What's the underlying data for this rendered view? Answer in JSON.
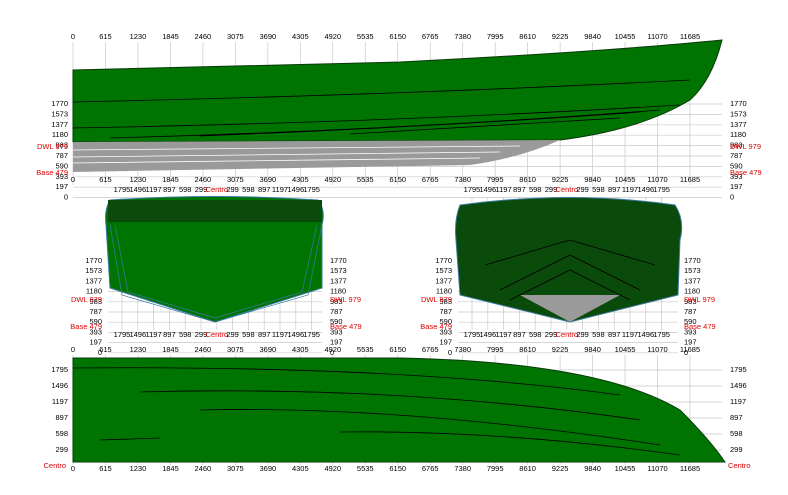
{
  "profile": {
    "x_labels": [
      0,
      615,
      1230,
      1845,
      2460,
      3075,
      3690,
      4305,
      4920,
      5535,
      6150,
      6765,
      7380,
      7995,
      8610,
      9225,
      9840,
      10455,
      11070,
      11685
    ],
    "y_labels": [
      1770,
      1573,
      1377,
      1180,
      983,
      787,
      590,
      393,
      197,
      0
    ],
    "dwl_label": "DWL 979",
    "base_label": "Base 479"
  },
  "sections": {
    "x_labels": [
      "1795",
      "1496",
      "1197",
      "897",
      "598",
      "299",
      "Centro",
      "299",
      "598",
      "897",
      "1197",
      "1496",
      "1795"
    ]
  },
  "plan": {
    "y_labels": [
      1795,
      1496,
      1197,
      897,
      598,
      299
    ],
    "centro": "Centro"
  }
}
